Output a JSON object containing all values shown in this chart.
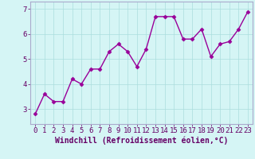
{
  "x": [
    0,
    1,
    2,
    3,
    4,
    5,
    6,
    7,
    8,
    9,
    10,
    11,
    12,
    13,
    14,
    15,
    16,
    17,
    18,
    19,
    20,
    21,
    22,
    23
  ],
  "y": [
    2.8,
    3.6,
    3.3,
    3.3,
    4.2,
    4.0,
    4.6,
    4.6,
    5.3,
    5.6,
    5.3,
    4.7,
    5.4,
    6.7,
    6.7,
    6.7,
    5.8,
    5.8,
    6.2,
    5.1,
    5.6,
    5.7,
    6.2,
    6.9
  ],
  "line_color": "#990099",
  "marker": "D",
  "markersize": 2.5,
  "linewidth": 1.0,
  "xlabel": "Windchill (Refroidissement éolien,°C)",
  "xlim": [
    -0.5,
    23.5
  ],
  "ylim": [
    2.4,
    7.3
  ],
  "yticks": [
    3,
    4,
    5,
    6,
    7
  ],
  "xticks": [
    0,
    1,
    2,
    3,
    4,
    5,
    6,
    7,
    8,
    9,
    10,
    11,
    12,
    13,
    14,
    15,
    16,
    17,
    18,
    19,
    20,
    21,
    22,
    23
  ],
  "bg_color": "#d5f5f5",
  "grid_color": "#aadddd",
  "line_border_color": "#aaaacc",
  "tick_color": "#660066",
  "label_color": "#660066",
  "font_size": 6.5,
  "xlabel_fontsize": 7.0
}
